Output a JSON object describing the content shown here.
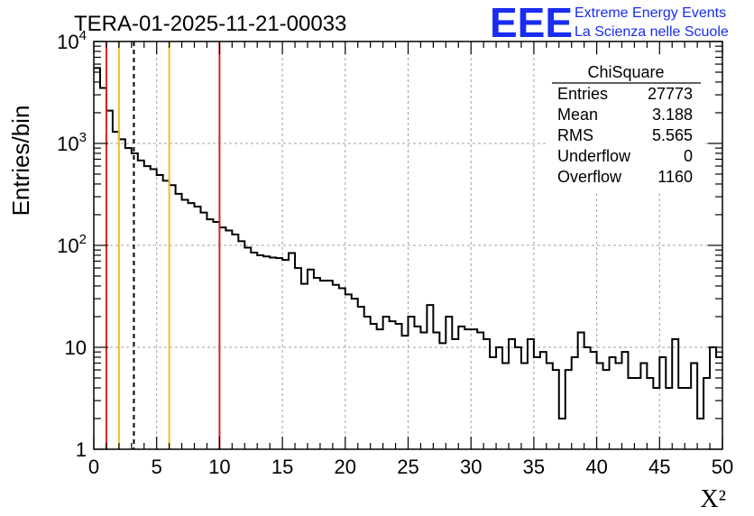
{
  "chart_data": {
    "type": "histogram",
    "title": "TERA-01-2025-11-21-00033",
    "xlabel": "X²",
    "ylabel": "Entries/bin",
    "xlim": [
      0,
      50
    ],
    "ylim": [
      1,
      10000
    ],
    "yscale": "log",
    "grid": true,
    "x_ticks": [
      "0",
      "5",
      "10",
      "15",
      "20",
      "25",
      "30",
      "35",
      "40",
      "45",
      "50"
    ],
    "y_tick_values": [
      1,
      10,
      100,
      1000,
      10000
    ],
    "y_tick_labels": [
      {
        "base": "1",
        "exp": ""
      },
      {
        "base": "10",
        "exp": ""
      },
      {
        "base": "10",
        "exp": "2"
      },
      {
        "base": "10",
        "exp": "3"
      },
      {
        "base": "10",
        "exp": "4"
      }
    ],
    "bin_width": 0.5,
    "bin_start": 0,
    "counts": [
      5500,
      3500,
      2100,
      1300,
      1100,
      900,
      800,
      680,
      600,
      560,
      490,
      430,
      390,
      320,
      280,
      260,
      240,
      210,
      180,
      170,
      150,
      140,
      128,
      110,
      95,
      85,
      80,
      78,
      76,
      75,
      72,
      84,
      60,
      42,
      58,
      48,
      45,
      45,
      41,
      38,
      33,
      30,
      25,
      20,
      17,
      15,
      20,
      18,
      17,
      13,
      20,
      16,
      14,
      26,
      14,
      11,
      20,
      12,
      16,
      15,
      15,
      14,
      12,
      8,
      10,
      7,
      12,
      10,
      7,
      12,
      8,
      9,
      7,
      6,
      2,
      6,
      8,
      14,
      10,
      9,
      7,
      6,
      8,
      7,
      9,
      5,
      5,
      7,
      5,
      4,
      8,
      4,
      12,
      4,
      4,
      7,
      2,
      5,
      10,
      8
    ],
    "reference_lines": [
      {
        "x": 1,
        "color": "#e02020",
        "style": "solid"
      },
      {
        "x": 2,
        "color": "#f0c020",
        "style": "solid"
      },
      {
        "x": 3.188,
        "color": "#000000",
        "style": "dashed"
      },
      {
        "x": 6,
        "color": "#f0c020",
        "style": "solid"
      },
      {
        "x": 10,
        "color": "#e02020",
        "style": "solid"
      }
    ],
    "stats": {
      "name": "ChiSquare",
      "rows": [
        {
          "label": "Entries",
          "value": "27773"
        },
        {
          "label": "Mean",
          "value": "3.188"
        },
        {
          "label": "RMS",
          "value": "5.565"
        },
        {
          "label": "Underflow",
          "value": "0"
        },
        {
          "label": "Overflow",
          "value": "1160"
        }
      ]
    }
  },
  "logo": {
    "text": "EEE",
    "line1": "Extreme Energy Events",
    "line2": "La Scienza nelle Scuole"
  },
  "colors": {
    "histogram": "#000000",
    "grid": "#a0a0a0",
    "logo": "#1a2cf0"
  }
}
